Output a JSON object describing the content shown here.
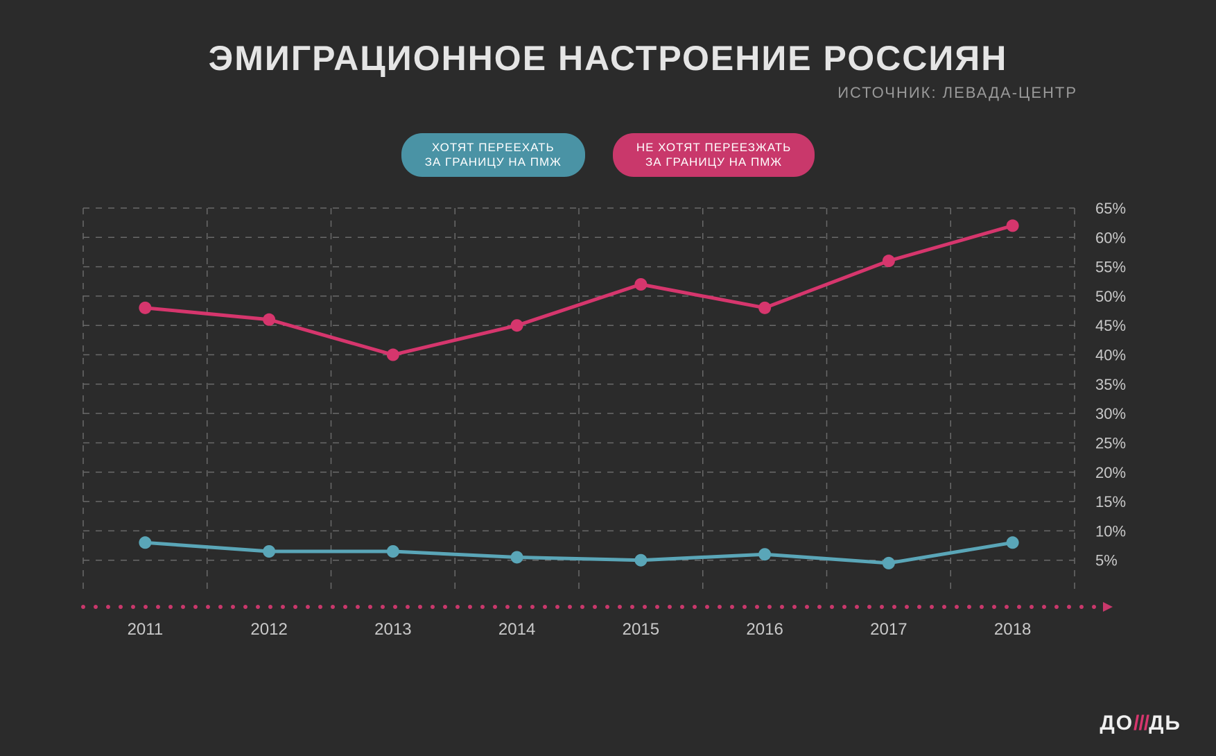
{
  "title": "ЭМИГРАЦИОННОЕ НАСТРОЕНИЕ РОССИЯН",
  "subtitle": "ИСТОЧНИК: ЛЕВАДА-ЦЕНТР",
  "legend": {
    "series_a": {
      "line1": "ХОТЯТ ПЕРЕЕХАТЬ",
      "line2": "ЗА ГРАНИЦУ НА ПМЖ",
      "bg": "#4a93a5"
    },
    "series_b": {
      "line1": "НЕ ХОТЯТ ПЕРЕЕЗЖАТЬ",
      "line2": "ЗА ГРАНИЦУ НА ПМЖ",
      "bg": "#c9386b"
    }
  },
  "chart": {
    "type": "line",
    "background_color": "#2b2b2b",
    "grid_color": "#6a6a6a",
    "axis_color_dots": "#c9386b",
    "axis_arrow_color": "#c9386b",
    "label_color": "#c9c9c9",
    "label_fontsize": 24,
    "tick_fontsize": 22,
    "ymin": 0,
    "ymax": 65,
    "ytick_step": 5,
    "yticks": [
      5,
      10,
      15,
      20,
      25,
      30,
      35,
      40,
      45,
      50,
      55,
      60,
      65
    ],
    "xcategories": [
      "2011",
      "2012",
      "2013",
      "2014",
      "2015",
      "2016",
      "2017",
      "2018"
    ],
    "marker_radius": 9,
    "line_width": 5,
    "series": [
      {
        "name": "dont_want",
        "color": "#d6366d",
        "values": [
          48,
          46,
          40,
          45,
          52,
          48,
          56,
          62
        ]
      },
      {
        "name": "want",
        "color": "#5aa6b8",
        "values": [
          8,
          6.5,
          6.5,
          5.5,
          5,
          6,
          4.5,
          8
        ]
      }
    ]
  },
  "brand": {
    "prefix": "ДО",
    "slashes": "///",
    "suffix": "ДЬ"
  }
}
